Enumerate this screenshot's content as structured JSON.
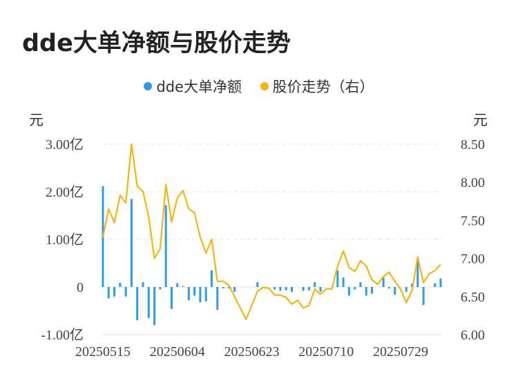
{
  "title": "dde大单净额与股价走势",
  "unit_left": "元",
  "unit_right": "元",
  "colors": {
    "bar": "#2e9be6",
    "line": "#f5b50f",
    "grid": "#e6e6e6"
  },
  "chart_data": {
    "type": "bar+line",
    "legend": [
      {
        "label": "dde大单净额",
        "color": "#2e9be6"
      },
      {
        "label": "股价走势（右）",
        "color": "#f5b50f"
      }
    ],
    "x_tick_labels": [
      "20250515",
      "20250604",
      "20250623",
      "20250710",
      "20250729"
    ],
    "x_tick_indices": [
      0,
      13,
      26,
      39,
      52
    ],
    "y_left": {
      "ticks": [
        3.0,
        2.0,
        1.0,
        0,
        -1.0
      ],
      "tick_labels": [
        "3.00亿",
        "2.00亿",
        "1.00亿",
        "0",
        "-1.00亿"
      ],
      "range": [
        -1.0,
        3.0
      ]
    },
    "y_right": {
      "ticks": [
        8.5,
        8.0,
        7.5,
        7.0,
        6.5,
        6.0
      ],
      "tick_labels": [
        "8.50",
        "8.00",
        "7.50",
        "7.00",
        "6.50",
        "6.00"
      ],
      "range": [
        6.0,
        8.5
      ]
    },
    "bars": [
      2.12,
      -0.24,
      -0.2,
      0.09,
      -0.2,
      1.85,
      -0.7,
      0.1,
      -0.65,
      -0.8,
      -0.05,
      1.72,
      -0.46,
      0.08,
      0.02,
      -0.28,
      -0.18,
      -0.32,
      -0.3,
      0.35,
      -0.48,
      -0.03,
      -0.03,
      -0.1,
      0.0,
      0.0,
      0.0,
      0.1,
      0.0,
      0.0,
      -0.05,
      -0.08,
      -0.07,
      -0.1,
      0.0,
      -0.08,
      -0.07,
      0.1,
      -0.1,
      0.0,
      0.0,
      0.35,
      0.2,
      -0.18,
      -0.05,
      0.1,
      -0.18,
      -0.14,
      0.0,
      0.2,
      -0.03,
      -0.16,
      0.0,
      -0.1,
      0.07,
      0.55,
      -0.38,
      0.0,
      0.08,
      0.18
    ],
    "line": [
      7.28,
      7.65,
      7.47,
      7.83,
      7.73,
      8.5,
      7.95,
      7.88,
      7.55,
      7.0,
      7.13,
      7.97,
      7.48,
      7.79,
      7.89,
      7.65,
      7.6,
      7.28,
      7.07,
      7.25,
      6.7,
      6.7,
      6.65,
      6.5,
      6.35,
      6.2,
      6.38,
      6.57,
      6.62,
      6.61,
      6.52,
      6.52,
      6.49,
      6.4,
      6.45,
      6.35,
      6.38,
      6.6,
      6.53,
      6.6,
      6.6,
      6.9,
      7.1,
      6.88,
      6.83,
      6.97,
      6.9,
      6.72,
      6.66,
      6.76,
      6.82,
      6.7,
      6.6,
      6.42,
      6.58,
      7.02,
      6.68,
      6.8,
      6.84,
      6.92
    ]
  }
}
